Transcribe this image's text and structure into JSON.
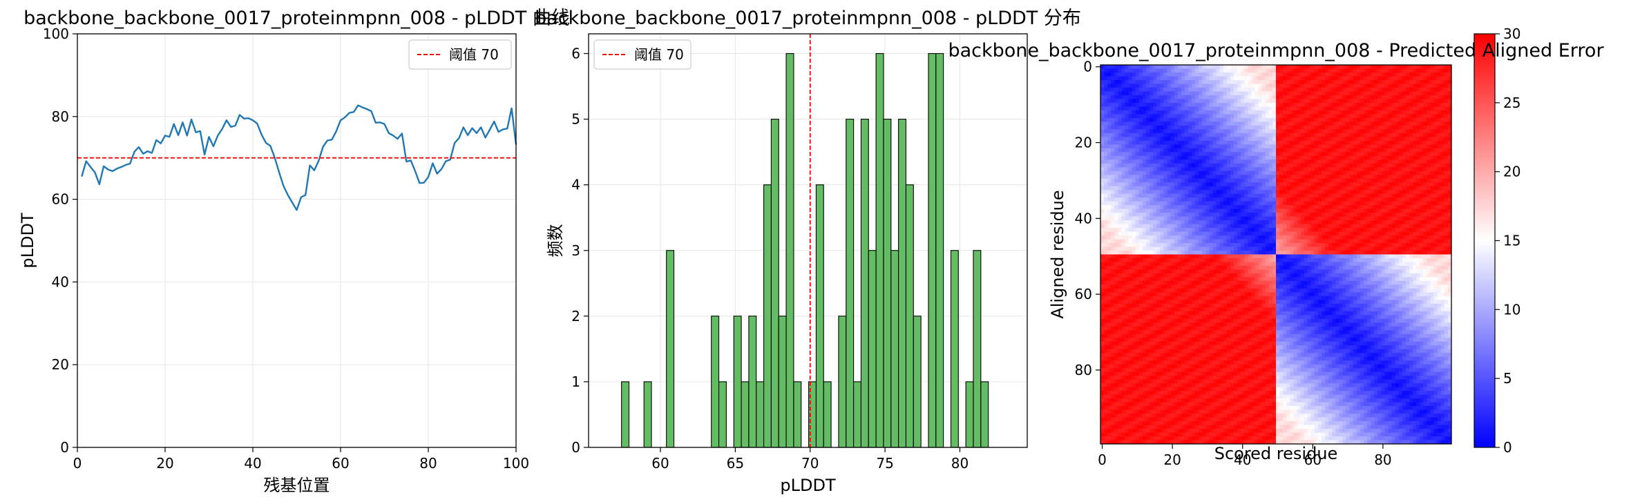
{
  "chart_data": [
    {
      "type": "line",
      "title": "backbone_backbone_0017_proteinmpnn_008 - pLDDT 曲线",
      "xlabel": "残基位置",
      "ylabel": "pLDDT",
      "xlim": [
        0,
        100
      ],
      "ylim": [
        0,
        100
      ],
      "x_ticks": [
        0,
        20,
        40,
        60,
        80,
        100
      ],
      "y_ticks": [
        0,
        20,
        40,
        60,
        80,
        100
      ],
      "grid": true,
      "legend_position": "top-right",
      "line_color": "#1f77b4",
      "threshold": {
        "label": "阈值 70",
        "value": 70,
        "color": "#ff0000"
      },
      "x": [
        1,
        2,
        3,
        4,
        5,
        6,
        7,
        8,
        9,
        10,
        11,
        12,
        13,
        14,
        15,
        16,
        17,
        18,
        19,
        20,
        21,
        22,
        23,
        24,
        25,
        26,
        27,
        28,
        29,
        30,
        31,
        32,
        33,
        34,
        35,
        36,
        37,
        38,
        39,
        40,
        41,
        42,
        43,
        44,
        45,
        46,
        47,
        48,
        49,
        50,
        51,
        52,
        53,
        54,
        55,
        56,
        57,
        58,
        59,
        60,
        61,
        62,
        63,
        64,
        65,
        66,
        67,
        68,
        69,
        70,
        71,
        72,
        73,
        74,
        75,
        76,
        77,
        78,
        79,
        80,
        81,
        82,
        83,
        84,
        85,
        86,
        87,
        88,
        89,
        90,
        91,
        92,
        93,
        94,
        95,
        96,
        97,
        98,
        99,
        100
      ],
      "y": [
        65.5,
        69.2,
        67.8,
        66.5,
        63.6,
        68.0,
        67.2,
        66.8,
        67.4,
        67.8,
        68.3,
        68.6,
        71.5,
        72.6,
        71.0,
        71.6,
        71.2,
        74.3,
        73.5,
        75.4,
        75.1,
        78.2,
        75.5,
        78.6,
        75.4,
        79.3,
        76.2,
        76.5,
        70.8,
        75.1,
        72.8,
        75.4,
        77.0,
        79.1,
        77.5,
        77.8,
        80.4,
        79.5,
        79.6,
        79.1,
        78.3,
        75.6,
        73.6,
        72.9,
        70.0,
        66.5,
        63.2,
        61.0,
        59.2,
        57.4,
        60.5,
        61.0,
        68.2,
        67.0,
        69.3,
        72.7,
        74.2,
        74.4,
        76.4,
        79.1,
        79.8,
        80.9,
        81.1,
        82.7,
        82.2,
        81.8,
        81.3,
        78.5,
        78.6,
        78.2,
        76.0,
        75.4,
        74.6,
        75.9,
        69.1,
        69.4,
        66.8,
        63.9,
        64.0,
        65.4,
        68.7,
        66.2,
        67.3,
        69.2,
        69.6,
        73.6,
        74.8,
        77.4,
        75.5,
        77.2,
        76.0,
        77.4,
        74.9,
        76.8,
        78.8,
        76.3,
        76.9,
        77.1,
        82.0,
        73.2
      ]
    },
    {
      "type": "bar",
      "title": "backbone_backbone_0017_proteinmpnn_008 - pLDDT 分布",
      "xlabel": "pLDDT",
      "ylabel": "频数",
      "xlim": [
        55.2,
        84.5
      ],
      "ylim": [
        0,
        6.3
      ],
      "x_ticks": [
        60,
        65,
        70,
        75,
        80
      ],
      "y_ticks": [
        0,
        1,
        2,
        3,
        4,
        5,
        6
      ],
      "grid": true,
      "legend_position": "top-left",
      "bar_color": "#5cb85c",
      "bin_start": 57.4,
      "bin_width": 0.5,
      "threshold": {
        "label": "阈值 70",
        "value": 70,
        "color": "#ff0000"
      },
      "counts": [
        1,
        0,
        0,
        1,
        0,
        0,
        3,
        0,
        0,
        0,
        0,
        0,
        2,
        1,
        0,
        2,
        1,
        2,
        1,
        4,
        5,
        2,
        6,
        1,
        0,
        1,
        4,
        1,
        0,
        2,
        5,
        1,
        5,
        3,
        6,
        5,
        3,
        5,
        4,
        2,
        0,
        6,
        6,
        0,
        3,
        0,
        1,
        3,
        1
      ]
    },
    {
      "type": "heatmap",
      "title": "backbone_backbone_0017_proteinmpnn_008 - Predicted Aligned Error",
      "xlabel": "Scored residue",
      "ylabel": "Aligned residue",
      "n_residues": 100,
      "x_ticks": [
        0,
        20,
        40,
        60,
        80
      ],
      "y_ticks": [
        0,
        20,
        40,
        60,
        80
      ],
      "colormap": "bwr",
      "colormap_colors": [
        "#0000ff",
        "#ffffff",
        "#ff0000"
      ],
      "vmin": 0,
      "vmax": 30,
      "colorbar_ticks": [
        0,
        5,
        10,
        15,
        20,
        25,
        30
      ],
      "domains": [
        [
          0,
          49
        ],
        [
          50,
          99
        ]
      ],
      "pattern": "low error along the diagonal (~0-3), low-moderate within residues 0-49 and 50-99, high error (~28-30) between the two halves"
    }
  ]
}
